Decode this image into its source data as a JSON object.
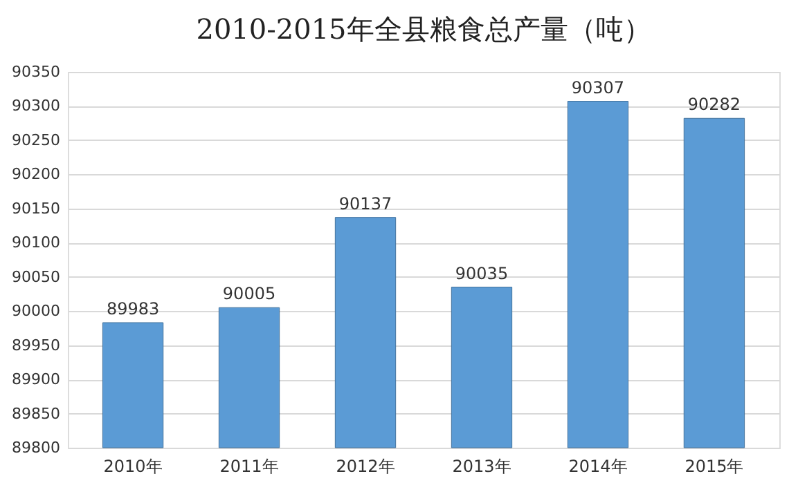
{
  "chart_data": {
    "type": "bar",
    "title": "2010-2015年全县粮食总产量（吨）",
    "categories": [
      "2010年",
      "2011年",
      "2012年",
      "2013年",
      "2014年",
      "2015年"
    ],
    "values": [
      89983,
      90005,
      90137,
      90035,
      90307,
      90282
    ],
    "color": "#5b9bd5",
    "ylim": [
      89800,
      90350
    ],
    "yticks": [
      89800,
      89850,
      89900,
      89950,
      90000,
      90050,
      90100,
      90150,
      90200,
      90250,
      90300,
      90350
    ],
    "grid": "y",
    "data_labels": true
  }
}
